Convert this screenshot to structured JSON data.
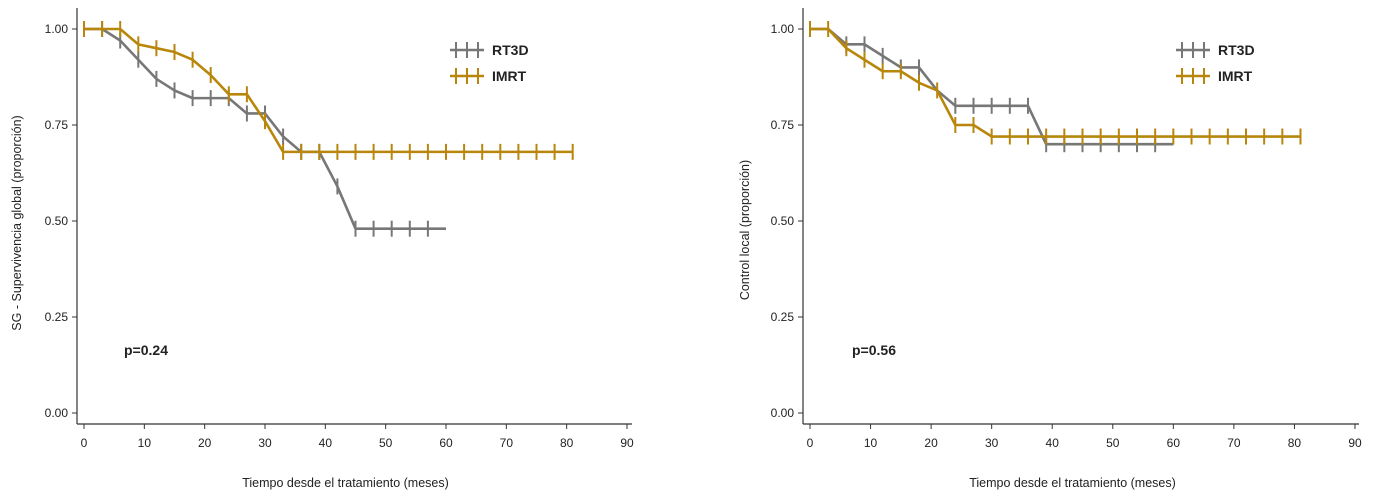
{
  "colors": {
    "rt3d": "#777777",
    "imrt": "#b8860b",
    "axis": "#333333"
  },
  "chart_data": [
    {
      "type": "line",
      "subtype": "kaplan-meier",
      "xlabel": "Tiempo desde el tratamiento (meses)",
      "ylabel": "SG - Supervivencia  global (proporción)",
      "xlim": [
        0,
        90
      ],
      "ylim": [
        0,
        1
      ],
      "x_ticks": [
        0,
        10,
        20,
        30,
        40,
        50,
        60,
        70,
        80,
        90
      ],
      "y_ticks": [
        0,
        0.25,
        0.5,
        0.75,
        1.0
      ],
      "y_tick_labels": [
        "0.00",
        "0.25",
        "0.50",
        "0.75",
        "1.00"
      ],
      "x_tick_labels": [
        "0",
        "10",
        "20",
        "30",
        "40",
        "50",
        "60",
        "70",
        "80",
        "90"
      ],
      "annotation": "p=0.24",
      "legend": "top-right",
      "series": [
        {
          "name": "RT3D",
          "color": "#777777",
          "points": [
            [
              0,
              1.0
            ],
            [
              3,
              1.0
            ],
            [
              6,
              0.97
            ],
            [
              9,
              0.92
            ],
            [
              12,
              0.87
            ],
            [
              15,
              0.84
            ],
            [
              18,
              0.82
            ],
            [
              21,
              0.82
            ],
            [
              24,
              0.82
            ],
            [
              27,
              0.78
            ],
            [
              30,
              0.78
            ],
            [
              33,
              0.72
            ],
            [
              36,
              0.68
            ],
            [
              39,
              0.68
            ],
            [
              42,
              0.59
            ],
            [
              45,
              0.48
            ],
            [
              48,
              0.48
            ],
            [
              51,
              0.48
            ],
            [
              54,
              0.48
            ],
            [
              57,
              0.48
            ],
            [
              60,
              0.48
            ]
          ],
          "censors": [
            3,
            6,
            9,
            12,
            15,
            18,
            21,
            24,
            27,
            30,
            33,
            36,
            39,
            42,
            45,
            48,
            51,
            54,
            57
          ]
        },
        {
          "name": "IMRT",
          "color": "#b8860b",
          "points": [
            [
              0,
              1.0
            ],
            [
              3,
              1.0
            ],
            [
              6,
              1.0
            ],
            [
              9,
              0.96
            ],
            [
              12,
              0.95
            ],
            [
              15,
              0.94
            ],
            [
              18,
              0.92
            ],
            [
              21,
              0.88
            ],
            [
              24,
              0.83
            ],
            [
              27,
              0.83
            ],
            [
              30,
              0.76
            ],
            [
              33,
              0.68
            ],
            [
              81,
              0.68
            ]
          ],
          "censors": [
            0,
            3,
            6,
            9,
            12,
            15,
            18,
            21,
            24,
            27,
            30,
            33,
            36,
            39,
            42,
            45,
            48,
            51,
            54,
            57,
            60,
            63,
            66,
            69,
            72,
            75,
            78,
            81
          ]
        }
      ]
    },
    {
      "type": "line",
      "subtype": "kaplan-meier",
      "xlabel": "Tiempo desde el tratamiento (meses)",
      "ylabel": "Control local (proporción)",
      "xlim": [
        0,
        90
      ],
      "ylim": [
        0,
        1
      ],
      "x_ticks": [
        0,
        10,
        20,
        30,
        40,
        50,
        60,
        70,
        80,
        90
      ],
      "y_ticks": [
        0,
        0.25,
        0.5,
        0.75,
        1.0
      ],
      "y_tick_labels": [
        "0.00",
        "0.25",
        "0.50",
        "0.75",
        "1.00"
      ],
      "x_tick_labels": [
        "0",
        "10",
        "20",
        "30",
        "40",
        "50",
        "60",
        "70",
        "80",
        "90"
      ],
      "annotation": "p=0.56",
      "legend": "top-right",
      "series": [
        {
          "name": "RT3D",
          "color": "#777777",
          "points": [
            [
              0,
              1.0
            ],
            [
              3,
              1.0
            ],
            [
              6,
              0.96
            ],
            [
              9,
              0.96
            ],
            [
              12,
              0.93
            ],
            [
              15,
              0.9
            ],
            [
              18,
              0.9
            ],
            [
              21,
              0.84
            ],
            [
              24,
              0.8
            ],
            [
              27,
              0.8
            ],
            [
              30,
              0.8
            ],
            [
              33,
              0.8
            ],
            [
              36,
              0.8
            ],
            [
              39,
              0.7
            ],
            [
              42,
              0.7
            ],
            [
              45,
              0.7
            ],
            [
              48,
              0.7
            ],
            [
              51,
              0.7
            ],
            [
              54,
              0.7
            ],
            [
              57,
              0.7
            ],
            [
              60,
              0.7
            ]
          ],
          "censors": [
            6,
            9,
            12,
            15,
            18,
            24,
            27,
            30,
            33,
            36,
            39,
            42,
            45,
            48,
            51,
            54,
            57
          ]
        },
        {
          "name": "IMRT",
          "color": "#b8860b",
          "points": [
            [
              0,
              1.0
            ],
            [
              3,
              1.0
            ],
            [
              6,
              0.95
            ],
            [
              9,
              0.92
            ],
            [
              12,
              0.89
            ],
            [
              15,
              0.89
            ],
            [
              18,
              0.86
            ],
            [
              21,
              0.84
            ],
            [
              24,
              0.75
            ],
            [
              27,
              0.75
            ],
            [
              30,
              0.72
            ],
            [
              81,
              0.72
            ]
          ],
          "censors": [
            0,
            3,
            6,
            9,
            12,
            15,
            18,
            21,
            24,
            27,
            30,
            33,
            36,
            39,
            42,
            45,
            48,
            51,
            54,
            57,
            60,
            63,
            66,
            69,
            72,
            75,
            78,
            81
          ]
        }
      ]
    }
  ]
}
